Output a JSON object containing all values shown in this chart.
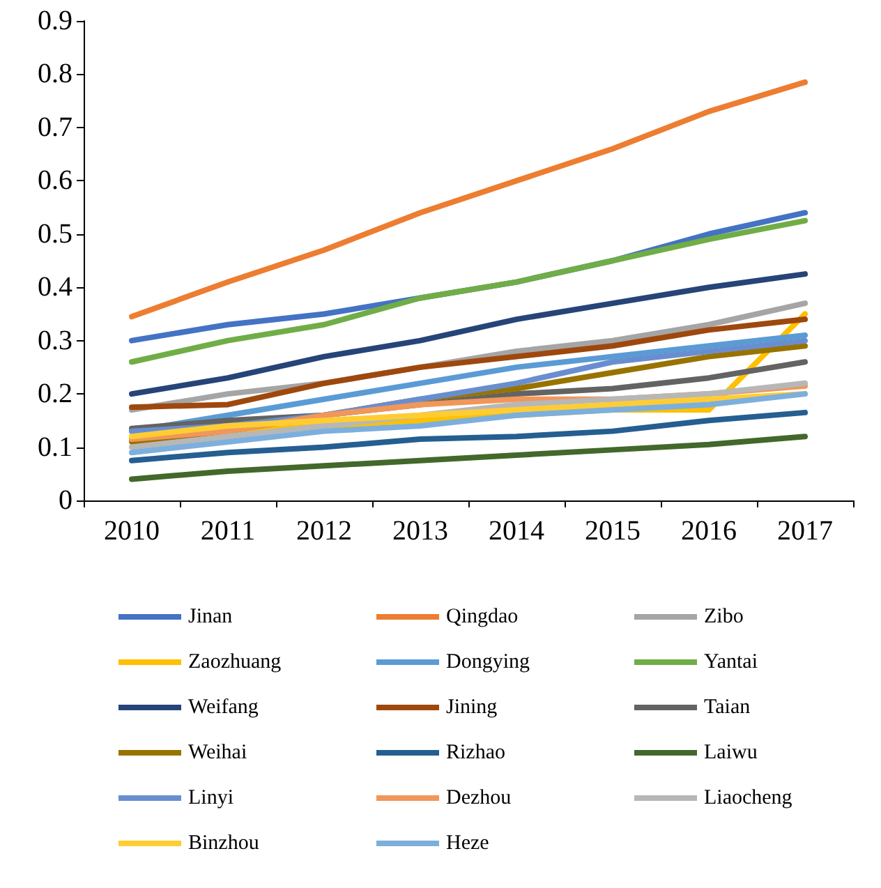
{
  "chart_data": {
    "type": "line",
    "categories": [
      "2010",
      "2011",
      "2012",
      "2013",
      "2014",
      "2015",
      "2016",
      "2017"
    ],
    "ylim": [
      0,
      0.9
    ],
    "yticks": [
      0,
      0.1,
      0.2,
      0.3,
      0.4,
      0.5,
      0.6,
      0.7,
      0.8,
      0.9
    ],
    "grid": false,
    "legend": "bottom",
    "marker": "none",
    "line_style": "solid",
    "series": [
      {
        "name": "Jinan",
        "color": "#4472c4",
        "values": [
          0.3,
          0.33,
          0.35,
          0.38,
          0.41,
          0.45,
          0.5,
          0.54
        ]
      },
      {
        "name": "Qingdao",
        "color": "#ed7d31",
        "values": [
          0.345,
          0.41,
          0.47,
          0.54,
          0.6,
          0.66,
          0.73,
          0.785
        ]
      },
      {
        "name": "Zibo",
        "color": "#a5a5a5",
        "values": [
          0.17,
          0.2,
          0.22,
          0.25,
          0.28,
          0.3,
          0.33,
          0.37
        ]
      },
      {
        "name": "Zaozhuang",
        "color": "#ffc000",
        "values": [
          0.12,
          0.13,
          0.14,
          0.15,
          0.16,
          0.17,
          0.17,
          0.35
        ]
      },
      {
        "name": "Dongying",
        "color": "#5b9bd5",
        "values": [
          0.13,
          0.16,
          0.19,
          0.22,
          0.25,
          0.27,
          0.29,
          0.31
        ]
      },
      {
        "name": "Yantai",
        "color": "#70ad47",
        "values": [
          0.26,
          0.3,
          0.33,
          0.38,
          0.41,
          0.45,
          0.49,
          0.525
        ]
      },
      {
        "name": "Weifang",
        "color": "#264478",
        "values": [
          0.2,
          0.23,
          0.27,
          0.3,
          0.34,
          0.37,
          0.4,
          0.425
        ]
      },
      {
        "name": "Jining",
        "color": "#9e480e",
        "values": [
          0.175,
          0.18,
          0.22,
          0.25,
          0.27,
          0.29,
          0.32,
          0.34
        ]
      },
      {
        "name": "Taian",
        "color": "#636363",
        "values": [
          0.135,
          0.15,
          0.16,
          0.18,
          0.2,
          0.21,
          0.23,
          0.26
        ]
      },
      {
        "name": "Weihai",
        "color": "#997300",
        "values": [
          0.11,
          0.13,
          0.16,
          0.19,
          0.21,
          0.24,
          0.27,
          0.29
        ]
      },
      {
        "name": "Rizhao",
        "color": "#255e91",
        "values": [
          0.075,
          0.09,
          0.1,
          0.115,
          0.12,
          0.13,
          0.15,
          0.165
        ]
      },
      {
        "name": "Laiwu",
        "color": "#43682b",
        "values": [
          0.04,
          0.055,
          0.065,
          0.075,
          0.085,
          0.095,
          0.105,
          0.12
        ]
      },
      {
        "name": "Linyi",
        "color": "#698ed0",
        "values": [
          0.13,
          0.14,
          0.16,
          0.19,
          0.22,
          0.26,
          0.28,
          0.3
        ]
      },
      {
        "name": "Dezhou",
        "color": "#f1975a",
        "values": [
          0.115,
          0.13,
          0.16,
          0.18,
          0.19,
          0.19,
          0.2,
          0.215
        ]
      },
      {
        "name": "Liaocheng",
        "color": "#b7b7b7",
        "values": [
          0.1,
          0.12,
          0.14,
          0.16,
          0.18,
          0.19,
          0.2,
          0.22
        ]
      },
      {
        "name": "Binzhou",
        "color": "#ffcd33",
        "values": [
          0.12,
          0.14,
          0.15,
          0.16,
          0.17,
          0.18,
          0.19,
          0.2
        ]
      },
      {
        "name": "Heze",
        "color": "#7cafdd",
        "values": [
          0.09,
          0.11,
          0.13,
          0.14,
          0.16,
          0.17,
          0.18,
          0.2
        ]
      }
    ]
  }
}
